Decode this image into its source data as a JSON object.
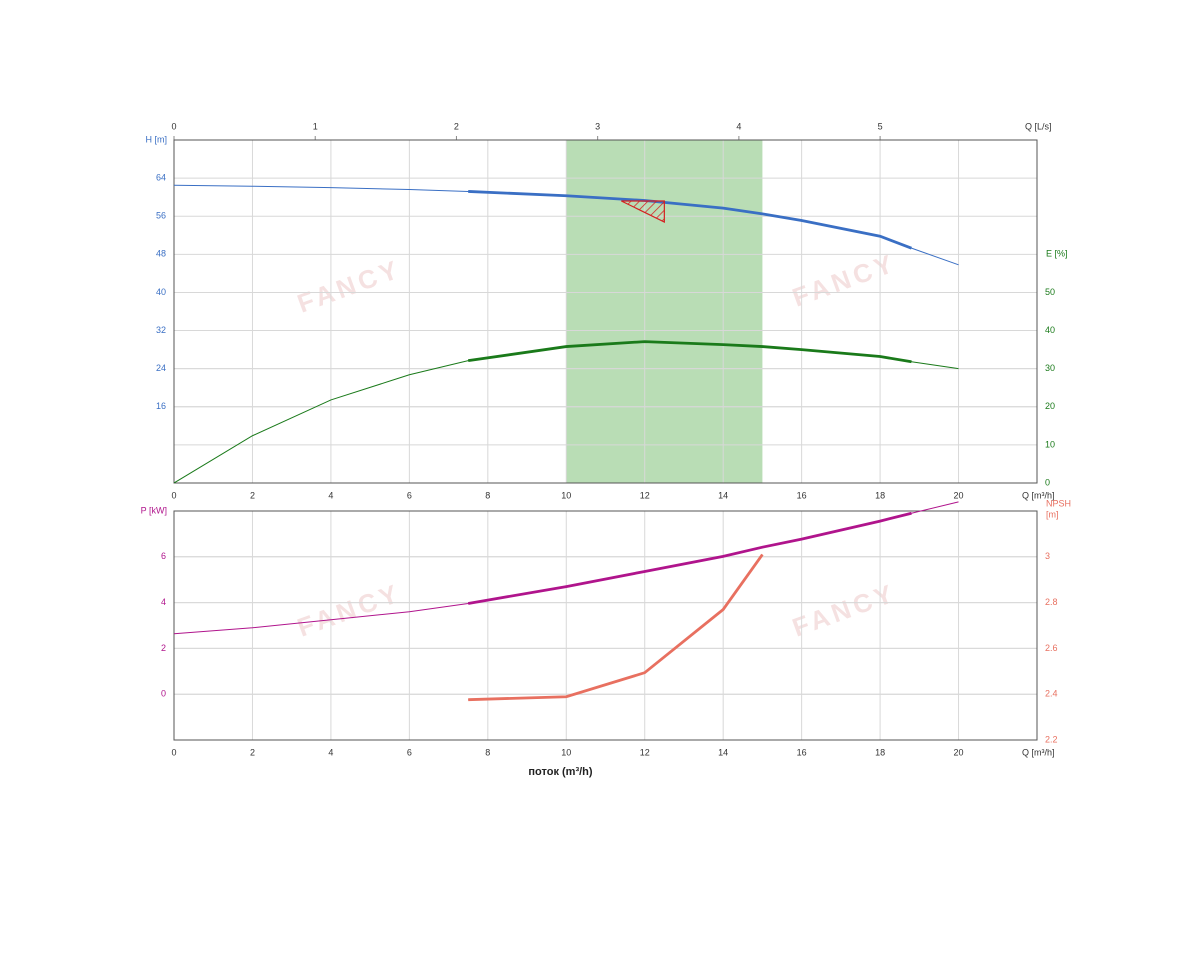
{
  "chart_data": [
    {
      "type": "line",
      "x": [
        0,
        2,
        4,
        6,
        7.5,
        10,
        12,
        14,
        15,
        16,
        18,
        18.8,
        20
      ],
      "series": [
        {
          "name": "H",
          "color": "#3a6fc4",
          "axis": "y",
          "values": [
            62.5,
            62.3,
            62.0,
            61.6,
            61.2,
            60.3,
            59.3,
            57.7,
            56.5,
            55.1,
            51.8,
            49.3,
            45.8
          ]
        },
        {
          "name": "E",
          "color": "#1a7a1a",
          "axis": "y2",
          "values": [
            0,
            12.4,
            21.8,
            28.4,
            32.1,
            35.8,
            37.1,
            36.3,
            35.8,
            35.0,
            33.2,
            31.8,
            30.0
          ]
        }
      ],
      "xlim": [
        0,
        22
      ],
      "xticks": [
        0,
        2,
        4,
        6,
        8,
        10,
        12,
        14,
        16,
        18,
        20
      ],
      "x_label": "Q [m³/h]",
      "x2lim": [
        0,
        6.111
      ],
      "x2ticks": [
        0,
        1,
        2,
        3,
        4,
        5
      ],
      "x2_label": "Q [L/s]",
      "ylim": [
        0,
        72
      ],
      "yticks": [
        16,
        24,
        32,
        40,
        48,
        56,
        64
      ],
      "y_label": "H [m]",
      "y2lim": [
        0,
        90
      ],
      "y2ticks": [
        0,
        10,
        20,
        30,
        40,
        50
      ],
      "y2_label": "E [%]",
      "operating_range": [
        7.5,
        18.8
      ],
      "bep_range": [
        10,
        15
      ],
      "bep_color": "#a8d5a2",
      "duty_point": {
        "x": 12.5,
        "y": 59.2,
        "color": "#d42020"
      },
      "grid": true,
      "watermark": "FANCY"
    },
    {
      "type": "line",
      "x": [
        0,
        2,
        4,
        6,
        7.5,
        10,
        12,
        14,
        15,
        16,
        18,
        18.8,
        20
      ],
      "series": [
        {
          "name": "P",
          "color": "#b0148c",
          "axis": "y",
          "values": [
            2.64,
            2.9,
            3.25,
            3.6,
            3.96,
            4.7,
            5.36,
            6.02,
            6.42,
            6.77,
            7.56,
            7.9,
            8.4
          ]
        },
        {
          "name": "NPSH",
          "color": "#e87060",
          "axis": "y2",
          "values": [
            null,
            null,
            null,
            null,
            2.376,
            2.389,
            2.494,
            2.77,
            3.01,
            null,
            null,
            null,
            null
          ]
        }
      ],
      "xlim": [
        0,
        22
      ],
      "xticks": [
        0,
        2,
        4,
        6,
        8,
        10,
        12,
        14,
        16,
        18,
        20
      ],
      "x_label": "Q [m³/h]",
      "x_title": "поток (m³/h)",
      "ylim": [
        -2,
        8
      ],
      "yticks": [
        0,
        2,
        4,
        6
      ],
      "y_label": "P [kW]",
      "y2lim": [
        2.2,
        3.2
      ],
      "y2ticks": [
        2.2,
        2.4,
        2.6,
        2.8,
        3
      ],
      "y2_label": [
        "NPSH",
        "[m]"
      ],
      "operating_range": [
        7.5,
        18.8
      ],
      "grid": true,
      "watermark": "FANCY"
    }
  ]
}
